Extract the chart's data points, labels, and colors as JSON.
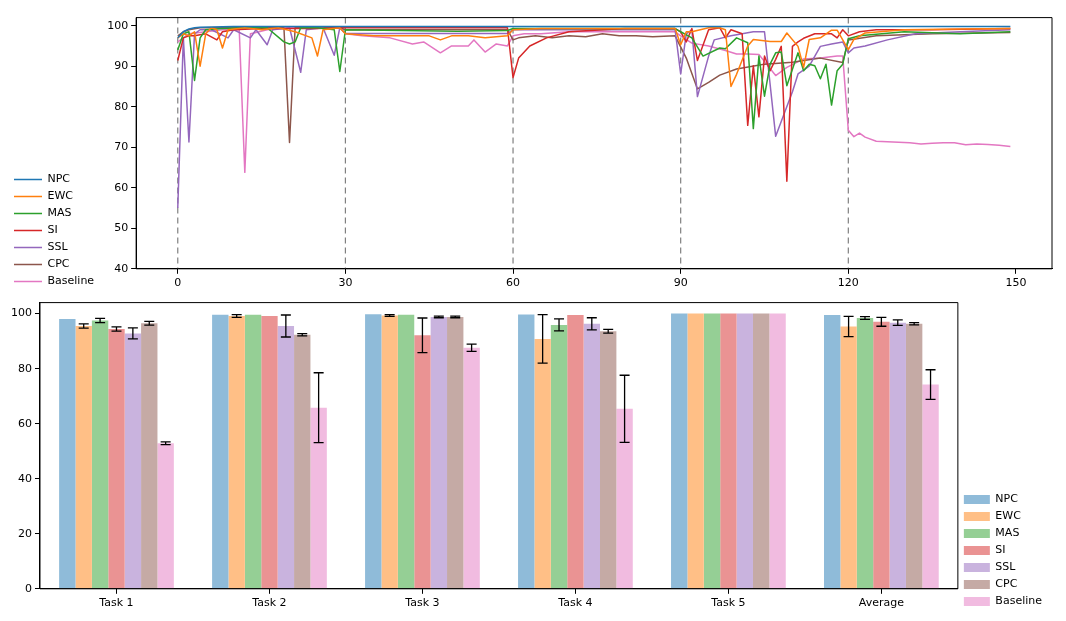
{
  "chart_data": [
    {
      "type": "line",
      "xlim": [
        -7.45,
        156.45
      ],
      "xticks": [
        0,
        30,
        60,
        90,
        120,
        150
      ],
      "ylim": [
        40,
        102
      ],
      "yticks": [
        40,
        50,
        60,
        70,
        80,
        90,
        100
      ],
      "grid": false,
      "legend": "bottom left",
      "marker": "none",
      "line_style": "solid",
      "ref_lines": [
        {
          "axis": "x",
          "value": 0,
          "color": "#808080",
          "line_style": "dashed"
        },
        {
          "axis": "x",
          "value": 30,
          "color": "#808080",
          "line_style": "dashed"
        },
        {
          "axis": "x",
          "value": 60,
          "color": "#808080",
          "line_style": "dashed"
        },
        {
          "axis": "x",
          "value": 90,
          "color": "#808080",
          "line_style": "dashed"
        },
        {
          "axis": "x",
          "value": 120,
          "color": "#808080",
          "line_style": "dashed"
        }
      ],
      "series": [
        {
          "name": "NPC",
          "color": "#1f77b4",
          "x": [
            0,
            1,
            2,
            3,
            4,
            6,
            10,
            30,
            60,
            90,
            120,
            149
          ],
          "values": [
            97,
            98.5,
            99.2,
            99.5,
            99.6,
            99.7,
            99.8,
            99.8,
            99.8,
            99.8,
            99.8,
            99.8
          ]
        },
        {
          "name": "EWC",
          "color": "#ff7f0e",
          "x": [
            0,
            1,
            2,
            3,
            4,
            5,
            6,
            7,
            8,
            9,
            12,
            15,
            18,
            21,
            24,
            25,
            26,
            29,
            30,
            35,
            40,
            45,
            47,
            49,
            52,
            55,
            59,
            60,
            65,
            75,
            89,
            90,
            91,
            92,
            95,
            97,
            98,
            99,
            100,
            102,
            103,
            106,
            108,
            109,
            111,
            112,
            113,
            115,
            117,
            118,
            120,
            121,
            123,
            130,
            140,
            149
          ],
          "values": [
            97,
            98,
            97.5,
            98.5,
            90,
            98,
            99.5,
            99,
            94.5,
            99,
            99.5,
            99,
            99.5,
            98.5,
            97,
            92.5,
            99,
            99.5,
            98,
            97.5,
            97.5,
            97.5,
            96.5,
            97.5,
            97.5,
            97,
            97.5,
            99,
            99.3,
            99.3,
            99.3,
            95.3,
            98.5,
            98.5,
            99.5,
            99.5,
            99,
            85,
            88,
            95,
            96.6,
            96.1,
            96.1,
            98.2,
            94.9,
            89.7,
            96.6,
            97,
            98.9,
            98.9,
            94.1,
            96.6,
            98.2,
            99,
            99.2,
            99.3
          ]
        },
        {
          "name": "MAS",
          "color": "#2ca02c",
          "x": [
            0,
            1,
            2,
            3,
            4,
            5,
            8,
            12,
            16,
            19,
            20,
            21,
            22,
            25,
            28,
            29,
            30,
            40,
            50,
            59,
            60,
            89,
            90,
            92,
            94,
            97,
            98,
            100,
            102,
            103,
            104,
            105,
            106,
            107,
            108,
            109,
            111,
            112,
            113,
            114,
            115,
            116,
            117,
            118,
            119,
            120,
            122,
            126,
            130,
            140,
            149
          ],
          "values": [
            94,
            98,
            98.5,
            86.5,
            97,
            99,
            99.3,
            99.5,
            99.5,
            96,
            95.5,
            96,
            99.5,
            99.5,
            99,
            88.7,
            99,
            98.8,
            98.6,
            98.8,
            99.3,
            99.3,
            98.5,
            97,
            92.5,
            94.5,
            94.3,
            97,
            95.8,
            74.6,
            92.5,
            82.6,
            90.5,
            93.3,
            93.5,
            85.2,
            93.3,
            88.9,
            90.5,
            90.1,
            86.9,
            90.5,
            80.4,
            88.9,
            90.5,
            96.8,
            97.5,
            98,
            98.5,
            98,
            98.5
          ]
        },
        {
          "name": "SI",
          "color": "#d62728",
          "x": [
            0,
            1,
            2,
            3,
            5,
            7,
            8,
            10,
            15,
            20,
            25,
            29,
            30,
            45,
            59,
            60,
            61,
            63,
            66,
            70,
            80,
            89,
            90,
            91,
            92,
            93,
            95,
            97,
            98,
            99,
            101,
            102,
            103,
            104,
            105,
            106,
            107,
            108,
            109,
            110,
            111,
            112,
            114,
            117,
            118,
            119,
            120,
            122,
            125,
            135,
            149
          ],
          "values": [
            91.4,
            97,
            97.5,
            97.5,
            98,
            96.5,
            98.5,
            99,
            99.3,
            99.3,
            99.3,
            99.5,
            99.5,
            99.5,
            99.5,
            87.2,
            92,
            95,
            97,
            98.5,
            99.3,
            99.3,
            98.5,
            96,
            99.3,
            91.4,
            99,
            99.5,
            97,
            99,
            98,
            75.4,
            90.1,
            77.5,
            92.5,
            88.9,
            91.7,
            94.9,
            61.6,
            94.9,
            96,
            96.9,
            98,
            98,
            97,
            99,
            97.5,
            98.5,
            99,
            99,
            99.3
          ]
        },
        {
          "name": "SSL",
          "color": "#9467bd",
          "x": [
            0,
            1,
            2,
            3,
            4,
            6,
            9,
            10,
            13,
            14,
            16,
            17,
            20,
            22,
            23,
            26,
            28,
            29,
            30,
            45,
            59,
            60,
            75,
            89,
            90,
            91,
            92,
            93,
            95,
            96,
            99,
            103,
            105,
            107,
            110,
            111,
            113,
            115,
            117,
            119,
            120,
            121,
            123,
            127,
            132,
            140,
            149
          ],
          "values": [
            55,
            97,
            71.3,
            98,
            99,
            99,
            97,
            99,
            97,
            99,
            95.3,
            99,
            99.5,
            88.5,
            99,
            99.5,
            92.7,
            99.5,
            98.1,
            98.1,
            98.1,
            99,
            99,
            99,
            88.1,
            98,
            99,
            82.5,
            92.5,
            96.5,
            97.5,
            98.5,
            98.5,
            72.7,
            83.7,
            88.1,
            90,
            94.9,
            95.5,
            96,
            93.3,
            94.5,
            95,
            96.5,
            98,
            98.5,
            99
          ]
        },
        {
          "name": "CPC",
          "color": "#8c564b",
          "x": [
            0,
            1,
            2,
            4,
            8,
            12,
            16,
            19,
            20,
            21,
            22,
            25,
            29,
            30,
            45,
            59,
            60,
            61,
            64,
            67,
            70,
            73,
            76,
            79,
            82,
            85,
            89,
            91,
            93,
            95,
            97,
            100,
            105,
            110,
            115,
            119,
            120,
            125,
            135,
            149
          ],
          "values": [
            97.5,
            98.5,
            99,
            99.5,
            99.5,
            99.5,
            99.5,
            99.5,
            71.2,
            99.5,
            99.5,
            99.5,
            99.5,
            99,
            99,
            99,
            96.5,
            97,
            97.5,
            97,
            97.5,
            97.3,
            98,
            97.5,
            97.5,
            97.3,
            97.5,
            92,
            84.4,
            86,
            87.8,
            89.3,
            90.5,
            91,
            92,
            90.9,
            96.5,
            97.5,
            98,
            98.3
          ]
        },
        {
          "name": "Baseline",
          "color": "#e377c2",
          "x": [
            0,
            2,
            5,
            8,
            11,
            12,
            13,
            16,
            20,
            25,
            29,
            30,
            33,
            38,
            42,
            44,
            47,
            49,
            52,
            53,
            55,
            57,
            59,
            60,
            62,
            65,
            70,
            80,
            89,
            90,
            92,
            95,
            98,
            100,
            102,
            104,
            107,
            109,
            112,
            115,
            118,
            119,
            120,
            121,
            122,
            123,
            125,
            128,
            131,
            133,
            135,
            137,
            139,
            141,
            143,
            145,
            147,
            149
          ],
          "values": [
            96,
            98,
            98.5,
            99,
            99,
            63.8,
            98,
            99,
            99.5,
            99.5,
            99.5,
            98,
            97.5,
            97,
            95.5,
            96,
            93.3,
            95,
            95,
            96.5,
            93.5,
            95.5,
            95,
            97.5,
            98,
            98,
            98.5,
            98.5,
            98.5,
            97.5,
            95.7,
            95,
            93.9,
            93,
            93,
            92.9,
            87.7,
            89.7,
            91.8,
            92,
            92.5,
            92.5,
            74.2,
            72.6,
            73.5,
            72.5,
            71.5,
            71.3,
            71.1,
            70.8,
            71,
            71.1,
            71.1,
            70.6,
            70.8,
            70.7,
            70.5,
            70.2
          ]
        }
      ]
    },
    {
      "type": "bar",
      "categories": [
        "Task 1",
        "Task 2",
        "Task 3",
        "Task 4",
        "Task 5",
        "Average"
      ],
      "ylim": [
        0,
        104
      ],
      "yticks": [
        0,
        20,
        40,
        60,
        80,
        100
      ],
      "grid": false,
      "legend": "bottom right",
      "series": [
        {
          "name": "NPC",
          "color": "#8fbbd9",
          "values": [
            98,
            99.6,
            99.8,
            99.7,
            100,
            99.5
          ],
          "errors": [
            null,
            null,
            null,
            null,
            null,
            null
          ]
        },
        {
          "name": "EWC",
          "color": "#ffbf86",
          "values": [
            95.5,
            99.1,
            99.3,
            90.8,
            100,
            95.3
          ],
          "errors": [
            0.8,
            0.5,
            0.3,
            8.8,
            null,
            3.7
          ]
        },
        {
          "name": "MAS",
          "color": "#95cf95",
          "values": [
            97.5,
            99.6,
            99.6,
            95.9,
            100,
            98.4
          ],
          "errors": [
            0.8,
            null,
            null,
            2.2,
            null,
            0.5
          ]
        },
        {
          "name": "SI",
          "color": "#ea9393",
          "values": [
            94.4,
            99.1,
            92.1,
            99.5,
            100,
            97
          ],
          "errors": [
            0.8,
            null,
            6.3,
            null,
            null,
            1.6
          ]
        },
        {
          "name": "SSL",
          "color": "#c9b3de",
          "values": [
            92.8,
            95.5,
            98.8,
            96.3,
            100,
            96.7
          ],
          "errors": [
            2,
            4,
            0.3,
            2.2,
            null,
            1
          ]
        },
        {
          "name": "CPC",
          "color": "#c5aaa5",
          "values": [
            96.5,
            92.3,
            98.8,
            93.6,
            100,
            96.3
          ],
          "errors": [
            0.7,
            0.4,
            0.3,
            0.7,
            null,
            0.4
          ]
        },
        {
          "name": "Baseline",
          "color": "#f1bbe0",
          "values": [
            52.9,
            65.8,
            87.6,
            65.4,
            100,
            74.2
          ],
          "errors": [
            0.5,
            12.7,
            1.3,
            12.2,
            null,
            5.4
          ]
        }
      ]
    }
  ]
}
